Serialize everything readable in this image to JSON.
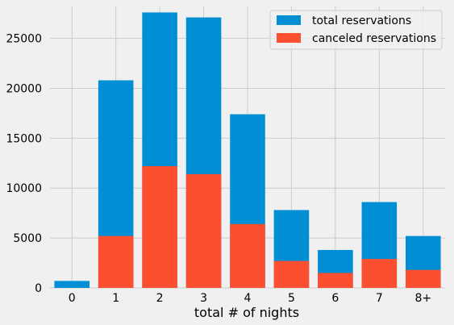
{
  "chart_data": {
    "type": "bar",
    "title": "",
    "xlabel": "total # of nights",
    "ylabel": "",
    "categories": [
      "0",
      "1",
      "2",
      "3",
      "4",
      "5",
      "6",
      "7",
      "8+"
    ],
    "series": [
      {
        "name": "total reservations",
        "color": "#008fd5",
        "values": [
          700,
          20800,
          27600,
          27100,
          17400,
          7800,
          3800,
          8600,
          5200
        ]
      },
      {
        "name": "canceled reservations",
        "color": "#fc4f30",
        "values": [
          0,
          5200,
          12200,
          11400,
          6400,
          2700,
          1500,
          2900,
          1800
        ]
      }
    ],
    "ylim": [
      0,
      28200
    ],
    "yticks": [
      0,
      5000,
      10000,
      15000,
      20000,
      25000
    ],
    "grid": true,
    "legend_position": "top-right",
    "overlay": true
  }
}
